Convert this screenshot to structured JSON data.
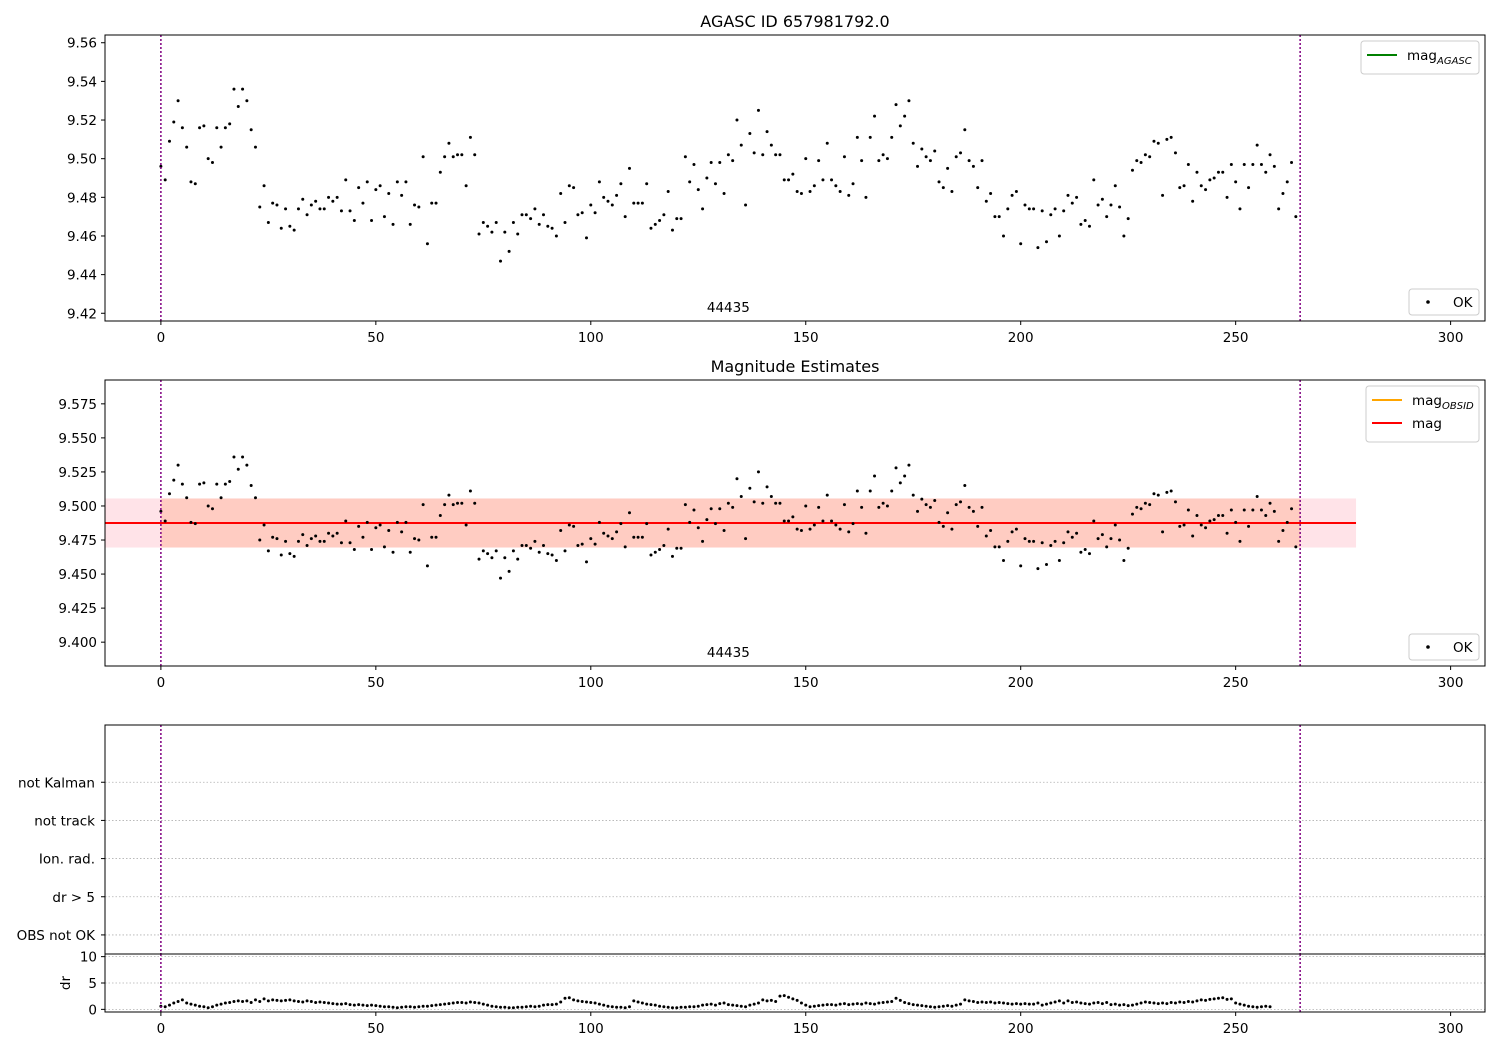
{
  "chart_data": [
    {
      "type": "scatter",
      "title": "AGASC ID 657981792.0",
      "xlim": [
        -13,
        308
      ],
      "ylim": [
        9.416,
        9.564
      ],
      "xticks": [
        0,
        50,
        100,
        150,
        200,
        250,
        300
      ],
      "yticks": [
        9.42,
        9.44,
        9.46,
        9.48,
        9.5,
        9.52,
        9.54,
        9.56
      ],
      "ytick_decimals": 2,
      "vlines": [
        0,
        265
      ],
      "obsid_label": {
        "text": "44435",
        "x": 132
      },
      "legend_lines": [
        {
          "base": "mag",
          "sub": "AGASC",
          "color": "#008000"
        }
      ],
      "legend_points": {
        "label": "OK"
      },
      "points_series": "mag_obs",
      "grid": false
    },
    {
      "type": "scatter",
      "title": "Magnitude Estimates",
      "xlim": [
        -13,
        308
      ],
      "ylim": [
        9.3825,
        9.5925
      ],
      "xticks": [
        0,
        50,
        100,
        150,
        200,
        250,
        300
      ],
      "yticks": [
        9.4,
        9.425,
        9.45,
        9.475,
        9.5,
        9.525,
        9.55,
        9.575
      ],
      "ytick_decimals": 3,
      "vlines": [
        0,
        265
      ],
      "obsid_label": {
        "text": "44435",
        "x": 132
      },
      "legend_lines": [
        {
          "base": "mag",
          "sub": "OBSID",
          "color": "#ffa500"
        },
        {
          "base": "mag",
          "sub": "",
          "color": "#ff0000"
        }
      ],
      "legend_points": {
        "label": "OK"
      },
      "bands": [
        {
          "x": [
            -13,
            278
          ],
          "y": [
            9.4695,
            9.5055
          ],
          "color": "#ffc0cb",
          "opacity": 0.45
        },
        {
          "x": [
            0,
            265
          ],
          "y": [
            9.4695,
            9.5055
          ],
          "color": "#ffa07a",
          "opacity": 0.35
        }
      ],
      "hline": {
        "y": 9.4875,
        "x": [
          -13,
          278
        ],
        "color": "#ff0000"
      },
      "points_series": "mag_obs",
      "grid": false
    },
    {
      "type": "scatter",
      "title": "",
      "xlim": [
        -13,
        308
      ],
      "ylim": [
        -0.5,
        5.5
      ],
      "yticks": [
        "OBS not OK",
        "dr > 5",
        "Ion. rad.",
        "not track",
        "not Kalman"
      ],
      "vlines": [
        0,
        265
      ],
      "grid": true
    },
    {
      "type": "scatter",
      "title": "",
      "ylabel": "dr",
      "xlim": [
        -13,
        308
      ],
      "ylim": [
        -0.5,
        10.5
      ],
      "xticks": [
        0,
        50,
        100,
        150,
        200,
        250,
        300
      ],
      "yticks": [
        0,
        5,
        10
      ],
      "vlines": [
        0,
        265
      ],
      "points_series": "dr",
      "grid": true
    }
  ],
  "series": {
    "x_start": 0,
    "x_step": 1,
    "mag_obs": [
      9.496,
      9.489,
      9.509,
      9.519,
      9.53,
      9.516,
      9.506,
      9.488,
      9.487,
      9.516,
      9.517,
      9.5,
      9.498,
      9.516,
      9.506,
      9.516,
      9.518,
      9.536,
      9.527,
      9.536,
      9.53,
      9.515,
      9.506,
      9.475,
      9.486,
      9.467,
      9.477,
      9.476,
      9.464,
      9.474,
      9.465,
      9.463,
      9.474,
      9.479,
      9.471,
      9.476,
      9.478,
      9.474,
      9.474,
      9.48,
      9.478,
      9.48,
      9.473,
      9.489,
      9.473,
      9.468,
      9.485,
      9.477,
      9.488,
      9.468,
      9.484,
      9.486,
      9.47,
      9.482,
      9.466,
      9.488,
      9.481,
      9.488,
      9.466,
      9.476,
      9.475,
      9.501,
      9.456,
      9.477,
      9.477,
      9.493,
      9.501,
      9.508,
      9.501,
      9.502,
      9.502,
      9.486,
      9.511,
      9.502,
      9.461,
      9.467,
      9.465,
      9.462,
      9.467,
      9.447,
      9.462,
      9.452,
      9.467,
      9.461,
      9.471,
      9.471,
      9.469,
      9.474,
      9.466,
      9.471,
      9.465,
      9.464,
      9.46,
      9.482,
      9.467,
      9.486,
      9.485,
      9.471,
      9.472,
      9.459,
      9.476,
      9.472,
      9.488,
      9.48,
      9.478,
      9.476,
      9.481,
      9.487,
      9.47,
      9.495,
      9.477,
      9.477,
      9.477,
      9.487,
      9.464,
      9.466,
      9.468,
      9.471,
      9.483,
      9.463,
      9.469,
      9.469,
      9.501,
      9.488,
      9.497,
      9.484,
      9.474,
      9.49,
      9.498,
      9.487,
      9.498,
      9.482,
      9.502,
      9.499,
      9.52,
      9.507,
      9.476,
      9.513,
      9.503,
      9.525,
      9.502,
      9.514,
      9.507,
      9.502,
      9.502,
      9.489,
      9.489,
      9.492,
      9.483,
      9.482,
      9.5,
      9.483,
      9.486,
      9.499,
      9.489,
      9.508,
      9.489,
      9.486,
      9.483,
      9.501,
      9.481,
      9.487,
      9.511,
      9.499,
      9.48,
      9.511,
      9.522,
      9.499,
      9.502,
      9.5,
      9.511,
      9.528,
      9.517,
      9.522,
      9.53,
      9.508,
      9.496,
      9.505,
      9.501,
      9.499,
      9.504,
      9.488,
      9.485,
      9.495,
      9.483,
      9.501,
      9.503,
      9.515,
      9.499,
      9.496,
      9.485,
      9.499,
      9.478,
      9.482,
      9.47,
      9.47,
      9.46,
      9.474,
      9.481,
      9.483,
      9.456,
      9.476,
      9.474,
      9.474,
      9.454,
      9.473,
      9.457,
      9.471,
      9.474,
      9.46,
      9.473,
      9.481,
      9.477,
      9.48,
      9.466,
      9.468,
      9.465,
      9.489,
      9.476,
      9.479,
      9.47,
      9.476,
      9.486,
      9.475,
      9.46,
      9.469,
      9.494,
      9.499,
      9.498,
      9.502,
      9.501,
      9.509,
      9.508,
      9.481,
      9.51,
      9.511,
      9.503,
      9.485,
      9.486,
      9.497,
      9.478,
      9.493,
      9.486,
      9.484,
      9.489,
      9.49,
      9.493,
      9.493,
      9.48,
      9.497,
      9.488,
      9.474,
      9.497,
      9.485,
      9.497,
      9.507,
      9.497,
      9.493,
      9.502,
      9.496,
      9.474,
      9.482,
      9.488,
      9.498,
      9.47
    ],
    "dr": [
      0.6,
      0.5,
      0.8,
      1.2,
      1.5,
      1.8,
      1.2,
      1.0,
      0.8,
      0.6,
      0.5,
      0.3,
      0.5,
      0.8,
      1.0,
      1.2,
      1.3,
      1.5,
      1.6,
      1.5,
      1.6,
      1.3,
      1.8,
      1.5,
      2.0,
      1.6,
      1.8,
      1.7,
      1.6,
      1.7,
      1.8,
      1.6,
      1.5,
      1.4,
      1.6,
      1.5,
      1.3,
      1.4,
      1.3,
      1.2,
      1.1,
      1.0,
      1.0,
      1.1,
      0.9,
      0.8,
      0.9,
      0.8,
      0.7,
      0.8,
      0.7,
      0.6,
      0.5,
      0.5,
      0.4,
      0.3,
      0.4,
      0.5,
      0.5,
      0.4,
      0.5,
      0.6,
      0.6,
      0.7,
      0.8,
      0.9,
      1.0,
      1.1,
      1.2,
      1.3,
      1.3,
      1.2,
      1.4,
      1.3,
      1.2,
      1.0,
      0.8,
      0.6,
      0.5,
      0.4,
      0.4,
      0.3,
      0.3,
      0.4,
      0.4,
      0.5,
      0.6,
      0.5,
      0.6,
      0.8,
      0.9,
      0.9,
      1.0,
      1.4,
      2.1,
      2.2,
      1.8,
      1.6,
      1.5,
      1.4,
      1.3,
      1.2,
      1.0,
      0.8,
      0.6,
      0.5,
      0.4,
      0.4,
      0.3,
      0.5,
      1.6,
      1.4,
      1.2,
      1.0,
      0.9,
      0.8,
      0.6,
      0.5,
      0.4,
      0.3,
      0.3,
      0.4,
      0.4,
      0.5,
      0.5,
      0.6,
      0.8,
      0.9,
      1.0,
      0.8,
      1.1,
      1.2,
      0.9,
      0.8,
      0.7,
      0.6,
      0.5,
      0.8,
      1.0,
      1.2,
      1.8,
      1.6,
      1.7,
      1.5,
      2.5,
      2.6,
      2.3,
      2.0,
      1.7,
      1.2,
      0.8,
      0.5,
      0.6,
      0.7,
      0.8,
      0.9,
      0.9,
      0.8,
      1.0,
      1.1,
      0.9,
      1.0,
      1.1,
      1.0,
      1.2,
      1.1,
      1.0,
      1.2,
      1.3,
      1.4,
      1.5,
      2.1,
      1.7,
      1.3,
      1.1,
      0.9,
      0.8,
      0.7,
      0.6,
      0.5,
      0.4,
      0.5,
      0.6,
      0.7,
      0.6,
      0.8,
      1.0,
      1.8,
      1.6,
      1.5,
      1.3,
      1.4,
      1.3,
      1.4,
      1.2,
      1.3,
      1.2,
      1.1,
      1.0,
      1.1,
      1.0,
      1.1,
      1.0,
      1.0,
      1.2,
      0.8,
      1.0,
      1.2,
      1.4,
      1.6,
      1.2,
      1.6,
      1.3,
      1.4,
      1.2,
      1.1,
      1.0,
      1.2,
      1.3,
      1.1,
      1.3,
      0.9,
      1.0,
      0.8,
      0.9,
      0.7,
      0.8,
      1.0,
      1.2,
      1.4,
      1.3,
      1.2,
      1.1,
      1.2,
      1.1,
      1.3,
      1.2,
      1.4,
      1.3,
      1.5,
      1.4,
      1.6,
      1.8,
      1.7,
      1.9,
      2.0,
      2.1,
      2.2,
      1.9,
      2.0,
      1.2,
      1.0,
      0.8,
      0.6,
      0.5,
      0.4,
      0.5,
      0.6,
      0.5
    ]
  }
}
